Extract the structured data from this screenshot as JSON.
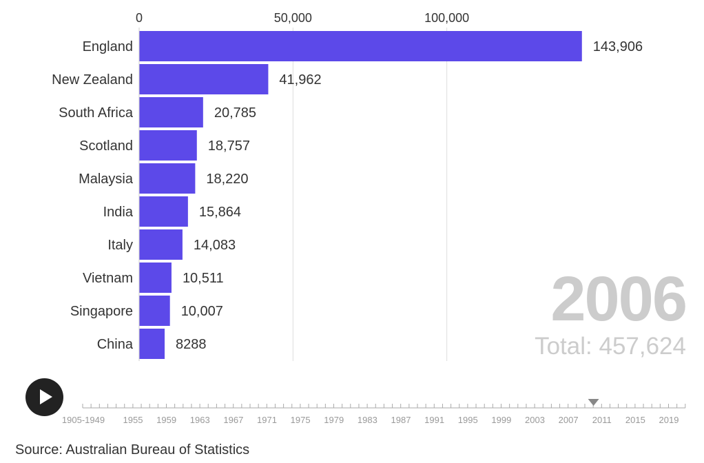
{
  "chart_data": {
    "type": "bar",
    "orientation": "horizontal",
    "categories": [
      "England",
      "New Zealand",
      "South Africa",
      "Scotland",
      "Malaysia",
      "India",
      "Italy",
      "Vietnam",
      "Singapore",
      "China"
    ],
    "values": [
      143906,
      41962,
      20785,
      18757,
      18220,
      15864,
      14083,
      10511,
      10007,
      8288
    ],
    "value_labels": [
      "143,906",
      "41,962",
      "20,785",
      "18,757",
      "18,220",
      "15,864",
      "14,083",
      "10,511",
      "10,007",
      "8288"
    ],
    "x_ticks": [
      0,
      50000,
      100000
    ],
    "x_tick_labels": [
      "0",
      "50,000",
      "100,000"
    ],
    "xlim": [
      0,
      150000
    ],
    "bar_color": "#5c49e9",
    "grid": true
  },
  "year": "2006",
  "total_text": "Total: 457,624",
  "timeline": {
    "labels": [
      "1905-1949",
      "1955",
      "1959",
      "1963",
      "1967",
      "1971",
      "1975",
      "1979",
      "1983",
      "1987",
      "1991",
      "1995",
      "1999",
      "2003",
      "2007",
      "2011",
      "2015",
      "2019"
    ],
    "current": "2006"
  },
  "source": "Source: Australian Bureau of Statistics",
  "play_icon": "play-icon"
}
